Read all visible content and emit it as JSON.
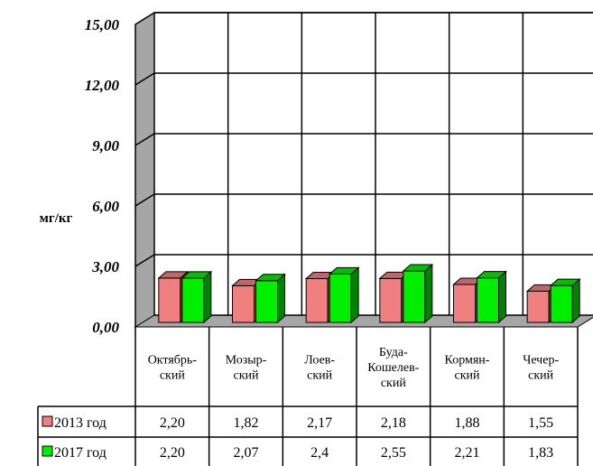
{
  "chart_data": {
    "type": "bar",
    "ylabel": "мг/кг",
    "ylim": [
      0,
      15
    ],
    "yticks": [
      "0,00",
      "3,00",
      "6,00",
      "9,00",
      "12,00",
      "15,00"
    ],
    "categories": [
      [
        "Октябрь-",
        "ский"
      ],
      [
        "Мозыр-",
        "ский"
      ],
      [
        "Лоев-",
        "ский"
      ],
      [
        "Буда-",
        "Кошелев-",
        "ский"
      ],
      [
        "Кормян-",
        "ский"
      ],
      [
        "Чечер-",
        "ский"
      ]
    ],
    "series": [
      {
        "name": "2013 год",
        "color": "#f08080",
        "values": [
          2.2,
          1.82,
          2.17,
          2.18,
          1.88,
          1.55
        ],
        "labels": [
          "2,20",
          "1,82",
          "2,17",
          "2,18",
          "1,88",
          "1,55"
        ]
      },
      {
        "name": "2017 год",
        "color": "#00ee00",
        "values": [
          2.2,
          2.07,
          2.4,
          2.55,
          2.21,
          1.83
        ],
        "labels": [
          "2,20",
          "2,07",
          "2,4",
          "2,55",
          "2,21",
          "1,83"
        ]
      }
    ],
    "grid": true,
    "legend": "table-left"
  }
}
